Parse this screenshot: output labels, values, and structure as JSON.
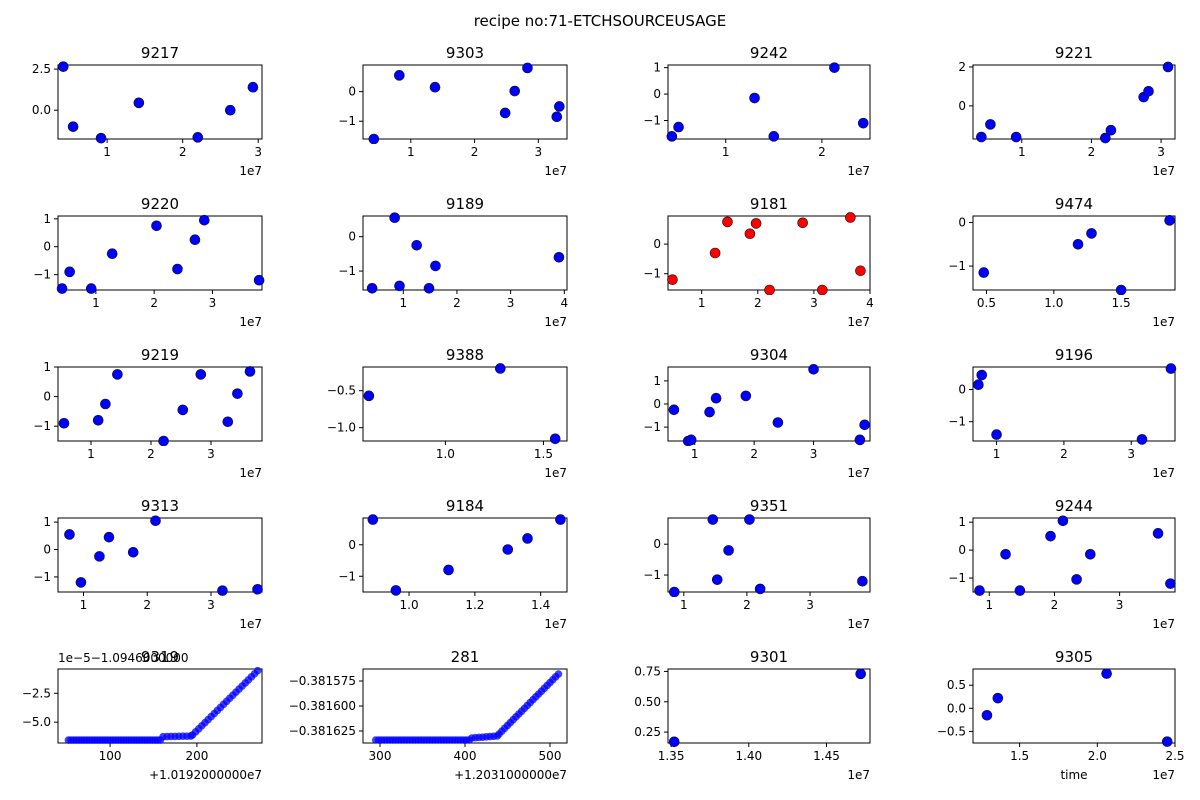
{
  "figure": {
    "suptitle": "recipe no:71-ETCHSOURCEUSAGE",
    "colors": {
      "normal": "#0000ff",
      "outlier": "#ff0000"
    }
  },
  "chart_data": [
    {
      "type": "scatter",
      "title": "9217",
      "x_exponent": "1e7",
      "xlim": [
        3.5,
        30.5
      ],
      "ylim": [
        -1.75,
        2.75
      ],
      "xticks": [
        {
          "v": 10,
          "label": "1"
        },
        {
          "v": 20,
          "label": "2"
        },
        {
          "v": 30,
          "label": "3"
        }
      ],
      "yticks": [
        {
          "v": 0,
          "label": "0.0"
        },
        {
          "v": 2.5,
          "label": "2.5"
        }
      ],
      "points": [
        [
          4.2,
          2.65
        ],
        [
          5.5,
          -1.0
        ],
        [
          9.2,
          -1.7
        ],
        [
          14.2,
          0.45
        ],
        [
          22.0,
          -1.65
        ],
        [
          26.3,
          0.0
        ],
        [
          29.3,
          1.4
        ]
      ]
    },
    {
      "type": "scatter",
      "title": "9303",
      "x_exponent": "1e7",
      "xlim": [
        2.5,
        34.5
      ],
      "ylim": [
        -1.6,
        0.9
      ],
      "xticks": [
        {
          "v": 10,
          "label": "1"
        },
        {
          "v": 20,
          "label": "2"
        },
        {
          "v": 30,
          "label": "3"
        }
      ],
      "yticks": [
        {
          "v": -1,
          "label": "−1"
        },
        {
          "v": 0,
          "label": "0"
        }
      ],
      "points": [
        [
          4.2,
          -1.6
        ],
        [
          8.2,
          0.55
        ],
        [
          13.8,
          0.15
        ],
        [
          24.8,
          -0.72
        ],
        [
          26.3,
          0.02
        ],
        [
          28.3,
          0.8
        ],
        [
          32.9,
          -0.85
        ],
        [
          33.3,
          -0.5
        ]
      ]
    },
    {
      "type": "scatter",
      "title": "9242",
      "x_exponent": "1e7",
      "xlim": [
        4.0,
        25.0
      ],
      "ylim": [
        -1.7,
        1.1
      ],
      "xticks": [
        {
          "v": 10,
          "label": "1"
        },
        {
          "v": 20,
          "label": "2"
        }
      ],
      "yticks": [
        {
          "v": -1,
          "label": "−1"
        },
        {
          "v": 0,
          "label": "0"
        },
        {
          "v": 1,
          "label": "1"
        }
      ],
      "points": [
        [
          4.4,
          -1.6
        ],
        [
          5.1,
          -1.25
        ],
        [
          13.0,
          -0.15
        ],
        [
          15.0,
          -1.6
        ],
        [
          21.3,
          1.0
        ],
        [
          24.3,
          -1.1
        ]
      ]
    },
    {
      "type": "scatter",
      "title": "9221",
      "x_exponent": "1e7",
      "xlim": [
        3.0,
        32.0
      ],
      "ylim": [
        -1.7,
        2.1
      ],
      "xticks": [
        {
          "v": 10,
          "label": "1"
        },
        {
          "v": 20,
          "label": "2"
        },
        {
          "v": 30,
          "label": "3"
        }
      ],
      "yticks": [
        {
          "v": 0,
          "label": "0"
        },
        {
          "v": 2,
          "label": "2"
        }
      ],
      "points": [
        [
          4.2,
          -1.6
        ],
        [
          5.5,
          -0.95
        ],
        [
          9.2,
          -1.6
        ],
        [
          22.0,
          -1.65
        ],
        [
          22.8,
          -1.25
        ],
        [
          27.5,
          0.45
        ],
        [
          28.2,
          0.75
        ],
        [
          31.0,
          2.0
        ]
      ]
    },
    {
      "type": "scatter",
      "title": "9220",
      "x_exponent": "1e7",
      "xlim": [
        3.5,
        38.5
      ],
      "ylim": [
        -1.55,
        1.1
      ],
      "xticks": [
        {
          "v": 10,
          "label": "1"
        },
        {
          "v": 20,
          "label": "2"
        },
        {
          "v": 30,
          "label": "3"
        }
      ],
      "yticks": [
        {
          "v": -1,
          "label": "−1"
        },
        {
          "v": 0,
          "label": "0"
        },
        {
          "v": 1,
          "label": "1"
        }
      ],
      "points": [
        [
          4.2,
          -1.5
        ],
        [
          5.5,
          -0.9
        ],
        [
          9.2,
          -1.5
        ],
        [
          12.8,
          -0.25
        ],
        [
          20.4,
          0.75
        ],
        [
          24.0,
          -0.8
        ],
        [
          27.0,
          0.25
        ],
        [
          28.6,
          0.95
        ],
        [
          38.0,
          -1.2
        ]
      ]
    },
    {
      "type": "scatter",
      "title": "9189",
      "x_exponent": "1e7",
      "xlim": [
        2.5,
        40.5
      ],
      "ylim": [
        -1.55,
        0.6
      ],
      "xticks": [
        {
          "v": 10,
          "label": "1"
        },
        {
          "v": 20,
          "label": "2"
        },
        {
          "v": 30,
          "label": "3"
        },
        {
          "v": 40,
          "label": "4"
        }
      ],
      "yticks": [
        {
          "v": -1,
          "label": "−1"
        },
        {
          "v": 0,
          "label": "0"
        }
      ],
      "points": [
        [
          4.2,
          -1.5
        ],
        [
          8.4,
          0.55
        ],
        [
          9.3,
          -1.43
        ],
        [
          12.5,
          -0.25
        ],
        [
          14.8,
          -1.5
        ],
        [
          16.0,
          -0.85
        ],
        [
          39.0,
          -0.6
        ]
      ]
    },
    {
      "type": "scatter",
      "title": "9181",
      "x_exponent": "1e7",
      "xlim": [
        4.0,
        40.0
      ],
      "ylim": [
        -1.55,
        0.95
      ],
      "xticks": [
        {
          "v": 10,
          "label": "1"
        },
        {
          "v": 20,
          "label": "2"
        },
        {
          "v": 30,
          "label": "3"
        },
        {
          "v": 40,
          "label": "4"
        }
      ],
      "yticks": [
        {
          "v": -1,
          "label": "−1"
        },
        {
          "v": 0,
          "label": "0"
        }
      ],
      "highlight": true,
      "points": [
        [
          4.8,
          -1.2
        ],
        [
          12.4,
          -0.3
        ],
        [
          14.6,
          0.75
        ],
        [
          18.6,
          0.35
        ],
        [
          19.7,
          0.7
        ],
        [
          22.1,
          -1.55
        ],
        [
          28.0,
          0.72
        ],
        [
          31.5,
          -1.55
        ],
        [
          36.5,
          0.9
        ],
        [
          38.3,
          -0.9
        ]
      ]
    },
    {
      "type": "scatter",
      "title": "9474",
      "x_exponent": "1e7",
      "xlim": [
        4.0,
        19.0
      ],
      "ylim": [
        -1.55,
        0.15
      ],
      "xticks": [
        {
          "v": 5,
          "label": "0.5"
        },
        {
          "v": 10,
          "label": "1.0"
        },
        {
          "v": 15,
          "label": "1.5"
        }
      ],
      "yticks": [
        {
          "v": -1,
          "label": "−1"
        },
        {
          "v": 0,
          "label": "0"
        }
      ],
      "points": [
        [
          4.8,
          -1.15
        ],
        [
          11.8,
          -0.5
        ],
        [
          12.8,
          -0.25
        ],
        [
          15.0,
          -1.55
        ],
        [
          18.6,
          0.05
        ]
      ]
    },
    {
      "type": "scatter",
      "title": "9219",
      "x_exponent": "1e7",
      "xlim": [
        4.5,
        38.5
      ],
      "ylim": [
        -1.5,
        1.0
      ],
      "xticks": [
        {
          "v": 10,
          "label": "1"
        },
        {
          "v": 20,
          "label": "2"
        },
        {
          "v": 30,
          "label": "3"
        }
      ],
      "yticks": [
        {
          "v": -1,
          "label": "−1"
        },
        {
          "v": 0,
          "label": "0"
        },
        {
          "v": 1,
          "label": "1"
        }
      ],
      "points": [
        [
          5.5,
          -0.9
        ],
        [
          11.2,
          -0.8
        ],
        [
          12.4,
          -0.25
        ],
        [
          14.4,
          0.75
        ],
        [
          22.1,
          -1.5
        ],
        [
          25.3,
          -0.45
        ],
        [
          28.3,
          0.75
        ],
        [
          32.8,
          -0.85
        ],
        [
          34.4,
          0.1
        ],
        [
          36.5,
          0.85
        ]
      ]
    },
    {
      "type": "scatter",
      "title": "9388",
      "x_exponent": "1e7",
      "xlim": [
        5.8,
        16.2
      ],
      "ylim": [
        -1.18,
        -0.18
      ],
      "xticks": [
        {
          "v": 10,
          "label": "1.0"
        },
        {
          "v": 15,
          "label": "1.5"
        }
      ],
      "yticks": [
        {
          "v": -1,
          "label": "−1.0"
        },
        {
          "v": -0.5,
          "label": "−0.5"
        }
      ],
      "points": [
        [
          6.1,
          -0.57
        ],
        [
          12.8,
          -0.2
        ],
        [
          15.6,
          -1.15
        ]
      ]
    },
    {
      "type": "scatter",
      "title": "9304",
      "x_exponent": "1e7",
      "xlim": [
        5.5,
        39.5
      ],
      "ylim": [
        -1.6,
        1.6
      ],
      "xticks": [
        {
          "v": 10,
          "label": "1"
        },
        {
          "v": 20,
          "label": "2"
        },
        {
          "v": 30,
          "label": "3"
        }
      ],
      "yticks": [
        {
          "v": -1,
          "label": "−1"
        },
        {
          "v": 0,
          "label": "0"
        },
        {
          "v": 1,
          "label": "1"
        }
      ],
      "points": [
        [
          6.5,
          -0.25
        ],
        [
          8.9,
          -1.6
        ],
        [
          9.4,
          -1.55
        ],
        [
          12.5,
          -0.35
        ],
        [
          13.6,
          0.25
        ],
        [
          18.6,
          0.35
        ],
        [
          24.0,
          -0.8
        ],
        [
          30.0,
          1.5
        ],
        [
          37.8,
          -1.55
        ],
        [
          38.6,
          -0.9
        ]
      ]
    },
    {
      "type": "scatter",
      "title": "9196",
      "x_exponent": "1e7",
      "xlim": [
        6.5,
        36.5
      ],
      "ylim": [
        -1.6,
        0.7
      ],
      "xticks": [
        {
          "v": 10,
          "label": "1"
        },
        {
          "v": 20,
          "label": "2"
        },
        {
          "v": 30,
          "label": "3"
        }
      ],
      "yticks": [
        {
          "v": -1,
          "label": "−1"
        },
        {
          "v": 0,
          "label": "0"
        }
      ],
      "points": [
        [
          7.3,
          0.15
        ],
        [
          7.8,
          0.45
        ],
        [
          10.0,
          -1.4
        ],
        [
          31.6,
          -1.55
        ],
        [
          35.9,
          0.65
        ]
      ]
    },
    {
      "type": "scatter",
      "title": "9313",
      "x_exponent": "1e7",
      "xlim": [
        6.0,
        38.0
      ],
      "ylim": [
        -1.55,
        1.15
      ],
      "xticks": [
        {
          "v": 10,
          "label": "1"
        },
        {
          "v": 20,
          "label": "2"
        },
        {
          "v": 30,
          "label": "3"
        }
      ],
      "yticks": [
        {
          "v": -1,
          "label": "−1"
        },
        {
          "v": 0,
          "label": "0"
        },
        {
          "v": 1,
          "label": "1"
        }
      ],
      "points": [
        [
          7.8,
          0.55
        ],
        [
          9.6,
          -1.2
        ],
        [
          12.5,
          -0.25
        ],
        [
          14.0,
          0.45
        ],
        [
          17.8,
          -0.1
        ],
        [
          21.3,
          1.05
        ],
        [
          31.8,
          -1.5
        ],
        [
          37.3,
          -1.45
        ]
      ]
    },
    {
      "type": "scatter",
      "title": "9184",
      "x_exponent": "1e7",
      "xlim": [
        8.6,
        14.8
      ],
      "ylim": [
        -1.5,
        0.85
      ],
      "xticks": [
        {
          "v": 10,
          "label": "1.0"
        },
        {
          "v": 12,
          "label": "1.2"
        },
        {
          "v": 14,
          "label": "1.4"
        }
      ],
      "yticks": [
        {
          "v": -1,
          "label": "−1"
        },
        {
          "v": 0,
          "label": "0"
        }
      ],
      "points": [
        [
          8.9,
          0.8
        ],
        [
          9.6,
          -1.45
        ],
        [
          11.2,
          -0.8
        ],
        [
          13.0,
          -0.15
        ],
        [
          13.6,
          0.2
        ],
        [
          14.6,
          0.8
        ]
      ]
    },
    {
      "type": "scatter",
      "title": "9351",
      "x_exponent": "1e7",
      "xlim": [
        7.5,
        39.5
      ],
      "ylim": [
        -1.55,
        0.85
      ],
      "xticks": [
        {
          "v": 10,
          "label": "1"
        },
        {
          "v": 20,
          "label": "2"
        },
        {
          "v": 30,
          "label": "3"
        }
      ],
      "yticks": [
        {
          "v": -1,
          "label": "−1"
        },
        {
          "v": 0,
          "label": "0"
        }
      ],
      "points": [
        [
          8.5,
          -1.55
        ],
        [
          14.6,
          0.8
        ],
        [
          15.3,
          -1.15
        ],
        [
          17.1,
          -0.2
        ],
        [
          20.4,
          0.8
        ],
        [
          22.1,
          -1.45
        ],
        [
          38.3,
          -1.2
        ]
      ]
    },
    {
      "type": "scatter",
      "title": "9244",
      "x_exponent": "1e7",
      "xlim": [
        7.5,
        38.5
      ],
      "ylim": [
        -1.5,
        1.15
      ],
      "xticks": [
        {
          "v": 10,
          "label": "1"
        },
        {
          "v": 20,
          "label": "2"
        },
        {
          "v": 30,
          "label": "3"
        }
      ],
      "yticks": [
        {
          "v": -1,
          "label": "−1"
        },
        {
          "v": 0,
          "label": "0"
        },
        {
          "v": 1,
          "label": "1"
        }
      ],
      "points": [
        [
          8.5,
          -1.45
        ],
        [
          12.5,
          -0.15
        ],
        [
          14.7,
          -1.45
        ],
        [
          19.4,
          0.5
        ],
        [
          21.3,
          1.05
        ],
        [
          23.4,
          -1.05
        ],
        [
          25.5,
          -0.15
        ],
        [
          35.9,
          0.6
        ],
        [
          37.8,
          -1.2
        ]
      ]
    },
    {
      "type": "scatter",
      "title": "9319",
      "dense": true,
      "x_offset_label": "+1.0192000000e7",
      "y_offset_label": "1e−5−1.0946000000",
      "xlim": [
        40,
        275
      ],
      "ylim": [
        -6.8,
        -0.4
      ],
      "xticks": [
        {
          "v": 100,
          "label": "100"
        },
        {
          "v": 200,
          "label": "200"
        }
      ],
      "yticks": [
        {
          "v": -5,
          "label": "−5.0"
        },
        {
          "v": -2.5,
          "label": "−2.5"
        }
      ],
      "segments": [
        {
          "x0": 52,
          "x1": 158,
          "y0": -6.55,
          "y1": -6.55,
          "n": 36
        },
        {
          "x0": 161,
          "x1": 193,
          "y0": -6.25,
          "y1": -6.2,
          "n": 8
        },
        {
          "x0": 195,
          "x1": 270,
          "y0": -6.1,
          "y1": -0.55,
          "n": 22
        }
      ]
    },
    {
      "type": "scatter",
      "title": "281",
      "dense": true,
      "x_offset_label": "+1.2031000000e7",
      "xlim": [
        280,
        520
      ],
      "ylim": [
        -0.381637,
        -0.381563
      ],
      "xticks": [
        {
          "v": 300,
          "label": "300"
        },
        {
          "v": 400,
          "label": "400"
        },
        {
          "v": 500,
          "label": "500"
        }
      ],
      "yticks": [
        {
          "v": -0.381625,
          "label": "−0.381625"
        },
        {
          "v": -0.3816,
          "label": "−0.381600"
        },
        {
          "v": -0.381575,
          "label": "−0.381575"
        }
      ],
      "segments": [
        {
          "x0": 295,
          "x1": 405,
          "y0": -0.381634,
          "y1": -0.381634,
          "n": 34
        },
        {
          "x0": 408,
          "x1": 438,
          "y0": -0.381632,
          "y1": -0.38163,
          "n": 8
        },
        {
          "x0": 440,
          "x1": 510,
          "y0": -0.381628,
          "y1": -0.381568,
          "n": 22
        }
      ]
    },
    {
      "type": "scatter",
      "title": "9301",
      "x_exponent": "1e7",
      "xlim": [
        13.48,
        14.78
      ],
      "ylim": [
        0.16,
        0.77
      ],
      "xticks": [
        {
          "v": 13.5,
          "label": "1.35"
        },
        {
          "v": 14.0,
          "label": "1.40"
        },
        {
          "v": 14.5,
          "label": "1.45"
        }
      ],
      "yticks": [
        {
          "v": 0.25,
          "label": "0.25"
        },
        {
          "v": 0.5,
          "label": "0.50"
        },
        {
          "v": 0.75,
          "label": "0.75"
        }
      ],
      "points": [
        [
          13.52,
          0.17
        ],
        [
          14.72,
          0.73
        ]
      ]
    },
    {
      "type": "scatter",
      "title": "9305",
      "x_exponent": "1e7",
      "xlabel": "time",
      "xlim": [
        12.0,
        25.0
      ],
      "ylim": [
        -0.75,
        0.85
      ],
      "xticks": [
        {
          "v": 15,
          "label": "1.5"
        },
        {
          "v": 20,
          "label": "2.0"
        },
        {
          "v": 25,
          "label": "2.5"
        }
      ],
      "yticks": [
        {
          "v": -0.5,
          "label": "−0.5"
        },
        {
          "v": 0,
          "label": "0.0"
        },
        {
          "v": 0.5,
          "label": "0.5"
        }
      ],
      "points": [
        [
          12.9,
          -0.15
        ],
        [
          13.6,
          0.22
        ],
        [
          20.6,
          0.75
        ],
        [
          24.5,
          -0.72
        ]
      ]
    }
  ]
}
